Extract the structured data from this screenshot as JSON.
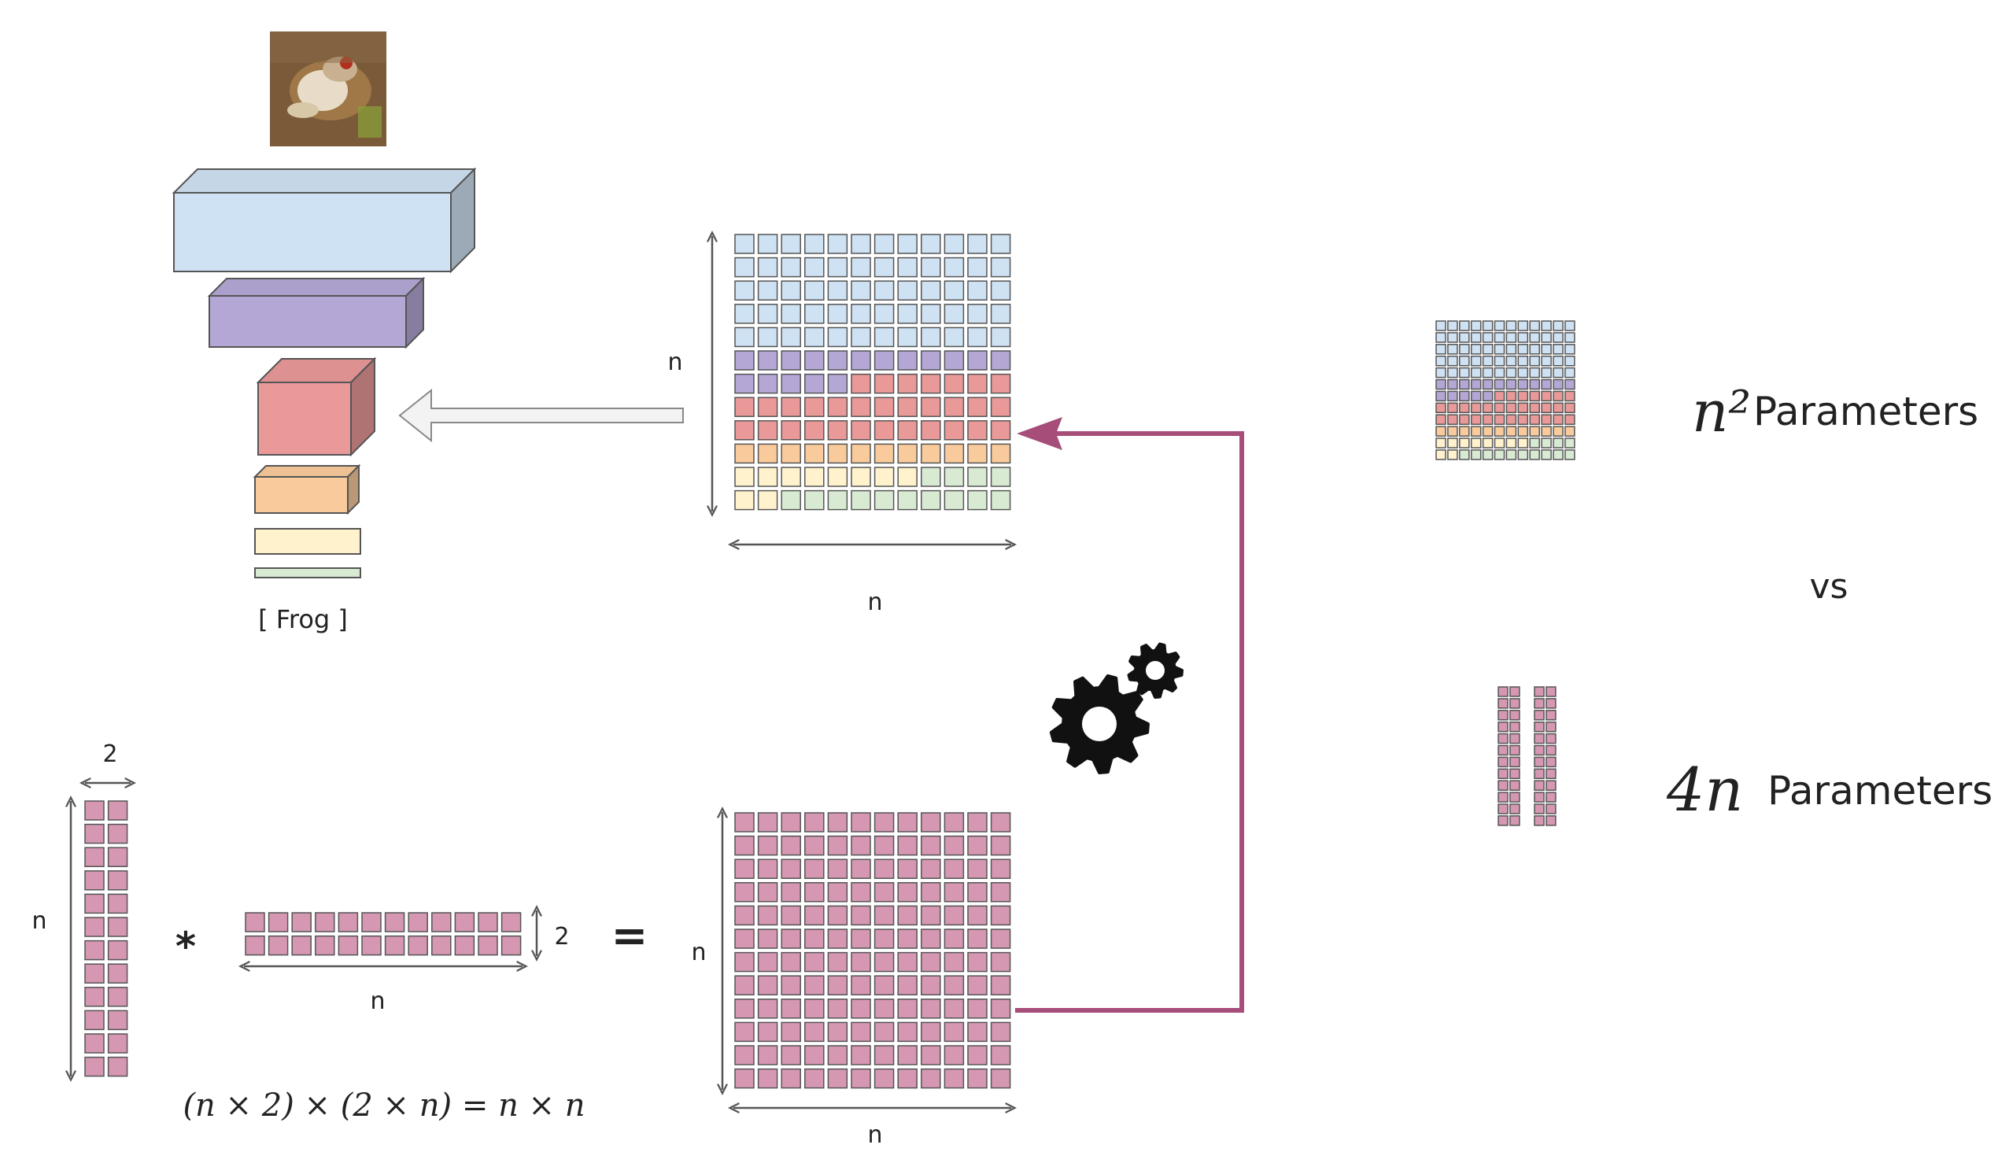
{
  "colors": {
    "layer1": "#cfe2f3",
    "layer2": "#b4a7d6",
    "layer3": "#ea9999",
    "layer4": "#f9cb9c",
    "layer5": "#fff2cc",
    "layer6": "#d9ead3",
    "lowrank": "#d597b2",
    "arrow_magenta": "#a64d79",
    "grid_stroke": "#555555",
    "arrow_gray": "#999999"
  },
  "network": {
    "class_label": "[ Frog ]",
    "input_image": "frog-thumbnail"
  },
  "full_matrix": {
    "row_label": "n",
    "col_label": "n",
    "rows": 12,
    "cols": 12,
    "row_colors": [
      "layer1",
      "layer1",
      "layer1",
      "layer1",
      "layer1",
      "layer2",
      "layer2",
      "layer3",
      "layer3",
      "layer4",
      "layer5",
      "layer6"
    ]
  },
  "factorization": {
    "left_height_label": "n",
    "left_width_label": "2",
    "multiply_sign": "*",
    "right_height_label": "2",
    "right_width_label": "n",
    "equals_sign": "=",
    "product_row_label": "n",
    "product_col_label": "n",
    "equation": "(n × 2) × (2 × n) = n × n"
  },
  "comparison": {
    "top_formula": "n²",
    "top_label": "Parameters",
    "vs": "vs",
    "bottom_formula": "4n",
    "bottom_label": "Parameters"
  }
}
